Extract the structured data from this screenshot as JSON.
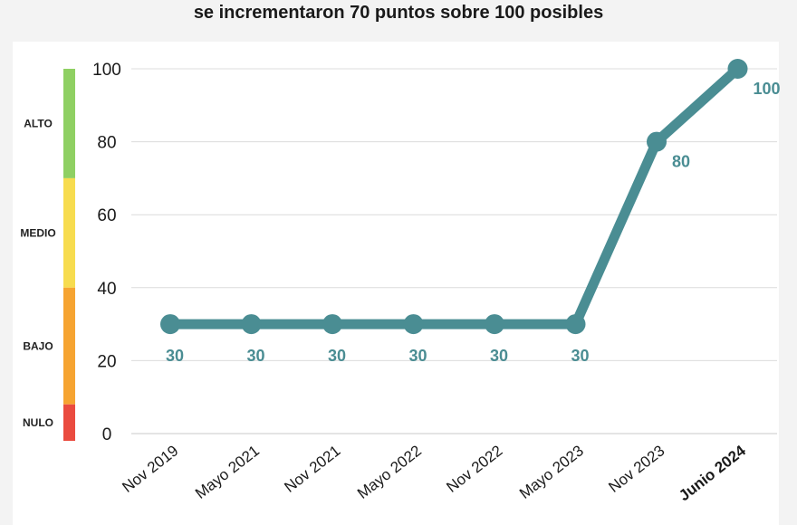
{
  "title": "se incrementaron 70 puntos sobre 100 posibles",
  "colors": {
    "line": "#4a8d93",
    "grid": "#dcdcdc"
  },
  "levels": [
    {
      "label": "ALTO",
      "from": 70,
      "to": 100,
      "color": "#8fd063"
    },
    {
      "label": "MEDIO",
      "from": 40,
      "to": 70,
      "color": "#f7dc4f"
    },
    {
      "label": "BAJO",
      "from": 8,
      "to": 40,
      "color": "#f6a431"
    },
    {
      "label": "NULO",
      "from": -2,
      "to": 8,
      "color": "#ea4b3f"
    }
  ],
  "chart_data": {
    "type": "line",
    "categories": [
      "Nov 2019",
      "Mayo 2021",
      "Nov 2021",
      "Mayo 2022",
      "Nov 2022",
      "Mayo 2023",
      "Nov 2023",
      "Junio 2024"
    ],
    "values": [
      30,
      30,
      30,
      30,
      30,
      30,
      80,
      100
    ],
    "data_labels": [
      "30",
      "30",
      "30",
      "30",
      "30",
      "30",
      "80",
      "100"
    ],
    "yticks": [
      0,
      20,
      40,
      60,
      80,
      100
    ],
    "ylim": [
      0,
      100
    ],
    "grid": true,
    "highlight_category": "Junio 2024"
  }
}
